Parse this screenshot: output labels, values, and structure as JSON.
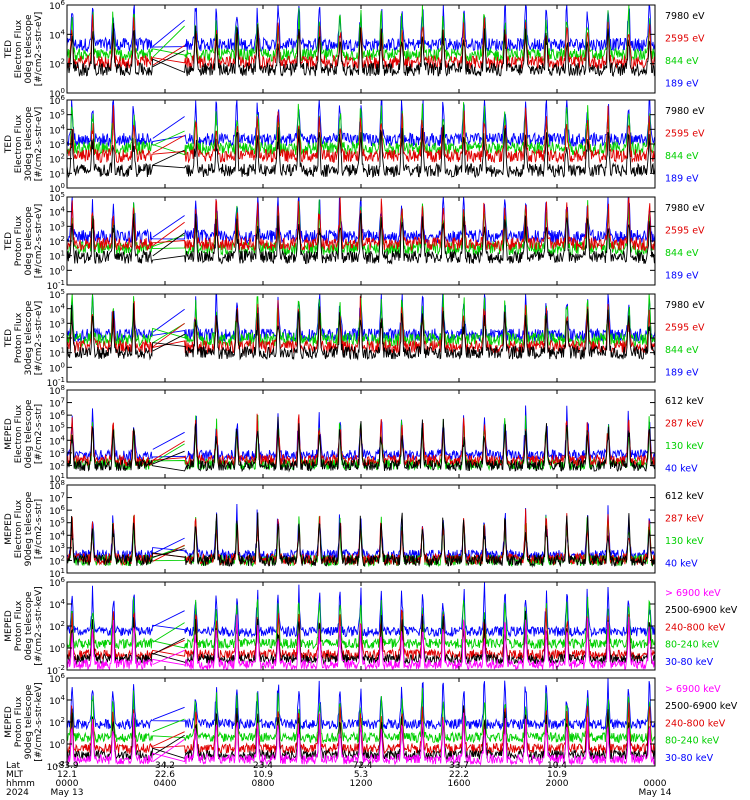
{
  "chart_data": {
    "type": "line",
    "time_axis": {
      "tick_hhmm": [
        "0000",
        "0400",
        "0800",
        "1200",
        "1600",
        "2000",
        "0000"
      ],
      "tick_hours": [
        0,
        4,
        8,
        12,
        16,
        20,
        24
      ],
      "range_hours": [
        0,
        24
      ],
      "data_gap_hours": [
        3.5,
        4.8
      ]
    },
    "footer": {
      "rows": [
        {
          "label": "Lat",
          "values": [
            "-83.9",
            "34.2",
            "23.4",
            "-72.4",
            "33.7",
            "10.4",
            ""
          ]
        },
        {
          "label": "MLT",
          "values": [
            "12.1",
            "22.6",
            "10.9",
            "5.3",
            "22.2",
            "10.9",
            ""
          ]
        },
        {
          "label": "hhmm",
          "values": [
            "0000",
            "0400",
            "0800",
            "1200",
            "1600",
            "2000",
            "0000"
          ]
        }
      ],
      "date_row": {
        "label": "2024",
        "start": "May 13",
        "end": "May 14"
      }
    },
    "panels": [
      {
        "ylabel": [
          "TED",
          "Electron Flux",
          "0deg telescope",
          "[#/cm2-s-str-eV]"
        ],
        "log_range": [
          0,
          6
        ],
        "yticks": [
          "10^0",
          "10^2",
          "10^4",
          "10^6"
        ],
        "series": [
          {
            "name": "7980 eV",
            "color": "#000000",
            "level": 1.6
          },
          {
            "name": "2595 eV",
            "color": "#e00000",
            "level": 2.1
          },
          {
            "name": "844 eV",
            "color": "#00d000",
            "level": 2.6
          },
          {
            "name": "189 eV",
            "color": "#0000ff",
            "level": 3.3
          }
        ]
      },
      {
        "ylabel": [
          "TED",
          "Electron Flux",
          "30deg telescope",
          "[#/cm2-s-str-eV]"
        ],
        "log_range": [
          0,
          6
        ],
        "yticks": [
          "10^0",
          "10^1",
          "10^2",
          "10^3",
          "10^4",
          "10^5",
          "10^6"
        ],
        "series": [
          {
            "name": "7980 eV",
            "color": "#000000",
            "level": 1.2
          },
          {
            "name": "2595 eV",
            "color": "#e00000",
            "level": 2.2
          },
          {
            "name": "844 eV",
            "color": "#00d000",
            "level": 2.7
          },
          {
            "name": "189 eV",
            "color": "#0000ff",
            "level": 3.3
          }
        ]
      },
      {
        "ylabel": [
          "TED",
          "Proton Flux",
          "0deg telescope",
          "[#/cm2-s-str-eV]"
        ],
        "log_range": [
          -1,
          5
        ],
        "yticks": [
          "10^-1",
          "10^0",
          "10^1",
          "10^2",
          "10^3",
          "10^4",
          "10^5"
        ],
        "series": [
          {
            "name": "7980 eV",
            "color": "#000000",
            "level": 0.9
          },
          {
            "name": "2595 eV",
            "color": "#e00000",
            "level": 1.8
          },
          {
            "name": "844 eV",
            "color": "#00d000",
            "level": 1.5
          },
          {
            "name": "189 eV",
            "color": "#0000ff",
            "level": 2.3
          }
        ]
      },
      {
        "ylabel": [
          "TED",
          "Proton Flux",
          "30deg telescope",
          "[#/cm2-s-str-eV]"
        ],
        "log_range": [
          -1,
          5
        ],
        "yticks": [
          "10^-1",
          "10^0",
          "10^1",
          "10^2",
          "10^3",
          "10^4",
          "10^5"
        ],
        "series": [
          {
            "name": "7980 eV",
            "color": "#000000",
            "level": 1.0
          },
          {
            "name": "2595 eV",
            "color": "#e00000",
            "level": 1.4
          },
          {
            "name": "844 eV",
            "color": "#00d000",
            "level": 1.9
          },
          {
            "name": "189 eV",
            "color": "#0000ff",
            "level": 2.2
          }
        ]
      },
      {
        "ylabel": [
          "MEPED",
          "Electron Flux",
          "0deg telescope",
          "[#/cm2-s-str]"
        ],
        "log_range": [
          1,
          8
        ],
        "yticks": [
          "10^1",
          "10^2",
          "10^3",
          "10^4",
          "10^5",
          "10^6",
          "10^7",
          "10^8"
        ],
        "series": [
          {
            "name": "612 keV",
            "color": "#000000",
            "level": 2.0
          },
          {
            "name": "287 keV",
            "color": "#e00000",
            "level": 2.4
          },
          {
            "name": "130 keV",
            "color": "#00d000",
            "level": 2.1
          },
          {
            "name": "40 keV",
            "color": "#0000ff",
            "level": 2.8
          }
        ]
      },
      {
        "ylabel": [
          "MEPED",
          "Electron Flux",
          "90deg telescope",
          "[#/cm2-s-str]"
        ],
        "log_range": [
          1,
          8
        ],
        "yticks": [
          "10^1",
          "10^2",
          "10^3",
          "10^4",
          "10^5",
          "10^6",
          "10^7",
          "10^8"
        ],
        "series": [
          {
            "name": "612 keV",
            "color": "#000000",
            "level": 2.0
          },
          {
            "name": "287 keV",
            "color": "#e00000",
            "level": 2.1
          },
          {
            "name": "130 keV",
            "color": "#00d000",
            "level": 2.0
          },
          {
            "name": "40 keV",
            "color": "#0000ff",
            "level": 2.4
          }
        ]
      },
      {
        "ylabel": [
          "MEPED",
          "Proton Flux",
          "0deg telescope",
          "[#/cm2-s-str-keV]"
        ],
        "log_range": [
          -2,
          6
        ],
        "yticks": [
          "10^-2",
          "10^0",
          "10^2",
          "10^4",
          "10^6"
        ],
        "series": [
          {
            "name": "> 6900 keV",
            "color": "#ff00ff",
            "level": -1.5
          },
          {
            "name": "2500-6900 keV",
            "color": "#000000",
            "level": -1.0
          },
          {
            "name": "240-800 keV",
            "color": "#e00000",
            "level": -0.6
          },
          {
            "name": "80-240 keV",
            "color": "#00d000",
            "level": 0.4
          },
          {
            "name": "30-80 keV",
            "color": "#0000ff",
            "level": 1.5
          }
        ]
      },
      {
        "ylabel": [
          "MEPED",
          "Proton Flux",
          "90deg telescope",
          "[#/cm2-s-str-keV]"
        ],
        "log_range": [
          -2,
          6
        ],
        "yticks": [
          "10^-2",
          "10^0",
          "10^2",
          "10^4",
          "10^6"
        ],
        "series": [
          {
            "name": "> 6900 keV",
            "color": "#ff00ff",
            "level": -1.4
          },
          {
            "name": "2500-6900 keV",
            "color": "#000000",
            "level": -1.0
          },
          {
            "name": "240-800 keV",
            "color": "#e00000",
            "level": -0.4
          },
          {
            "name": "80-240 keV",
            "color": "#00d000",
            "level": 0.6
          },
          {
            "name": "30-80 keV",
            "color": "#0000ff",
            "level": 1.8
          }
        ]
      }
    ]
  }
}
